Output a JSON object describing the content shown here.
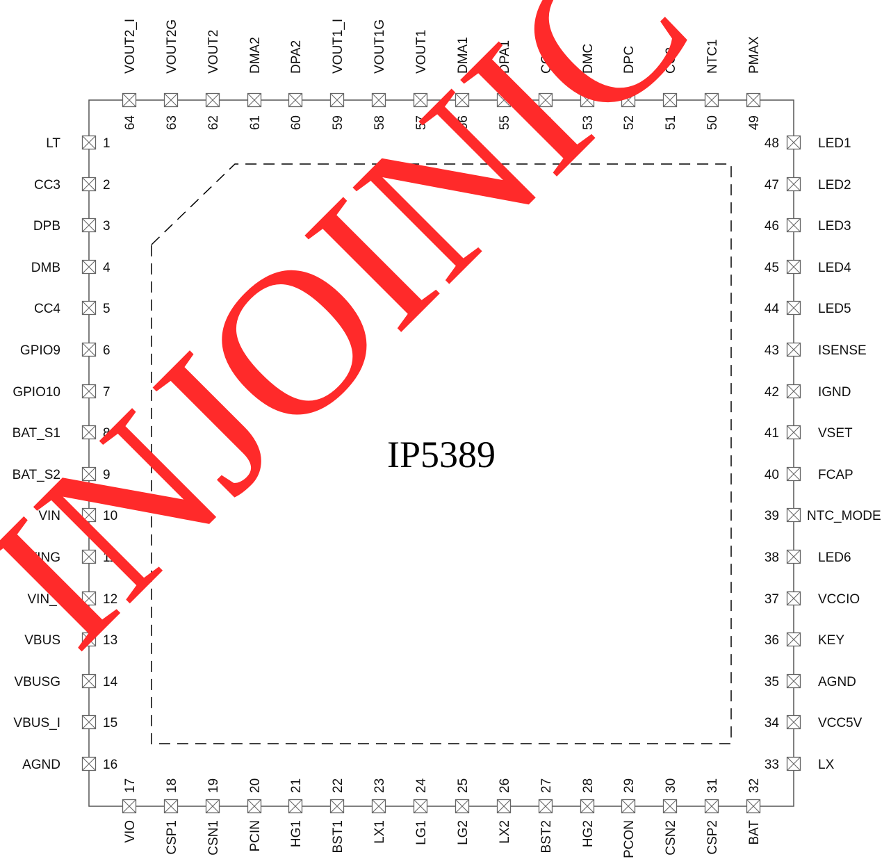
{
  "chip": {
    "name": "IP5389"
  },
  "watermark": {
    "text": "INJOINIC CORP.",
    "color": "#ff2a2a"
  },
  "colors": {
    "outline": "#555555",
    "pad": "#666666",
    "watermark": "#ff2a2a"
  },
  "pins": {
    "left": [
      {
        "num": "1",
        "name": "LT"
      },
      {
        "num": "2",
        "name": "CC3"
      },
      {
        "num": "3",
        "name": "DPB"
      },
      {
        "num": "4",
        "name": "DMB"
      },
      {
        "num": "5",
        "name": "CC4"
      },
      {
        "num": "6",
        "name": "GPIO9"
      },
      {
        "num": "7",
        "name": "GPIO10"
      },
      {
        "num": "8",
        "name": "BAT_S1"
      },
      {
        "num": "9",
        "name": "BAT_S2"
      },
      {
        "num": "10",
        "name": "VIN"
      },
      {
        "num": "11",
        "name": "VING"
      },
      {
        "num": "12",
        "name": "VIN_I"
      },
      {
        "num": "13",
        "name": "VBUS"
      },
      {
        "num": "14",
        "name": "VBUSG"
      },
      {
        "num": "15",
        "name": "VBUS_I"
      },
      {
        "num": "16",
        "name": "AGND"
      }
    ],
    "bottom": [
      {
        "num": "17",
        "name": "VIO"
      },
      {
        "num": "18",
        "name": "CSP1"
      },
      {
        "num": "19",
        "name": "CSN1"
      },
      {
        "num": "20",
        "name": "PCIN"
      },
      {
        "num": "21",
        "name": "HG1"
      },
      {
        "num": "22",
        "name": "BST1"
      },
      {
        "num": "23",
        "name": "LX1"
      },
      {
        "num": "24",
        "name": "LG1"
      },
      {
        "num": "25",
        "name": "LG2"
      },
      {
        "num": "26",
        "name": "LX2"
      },
      {
        "num": "27",
        "name": "BST2"
      },
      {
        "num": "28",
        "name": "HG2"
      },
      {
        "num": "29",
        "name": "PCON"
      },
      {
        "num": "30",
        "name": "CSN2"
      },
      {
        "num": "31",
        "name": "CSP2"
      },
      {
        "num": "32",
        "name": "BAT"
      }
    ],
    "right": [
      {
        "num": "48",
        "name": "LED1"
      },
      {
        "num": "47",
        "name": "LED2"
      },
      {
        "num": "46",
        "name": "LED3"
      },
      {
        "num": "45",
        "name": "LED4"
      },
      {
        "num": "44",
        "name": "LED5"
      },
      {
        "num": "43",
        "name": "ISENSE"
      },
      {
        "num": "42",
        "name": "IGND"
      },
      {
        "num": "41",
        "name": "VSET"
      },
      {
        "num": "40",
        "name": "FCAP"
      },
      {
        "num": "39",
        "name": "NTC_MODE"
      },
      {
        "num": "38",
        "name": "LED6"
      },
      {
        "num": "37",
        "name": "VCCIO"
      },
      {
        "num": "36",
        "name": "KEY"
      },
      {
        "num": "35",
        "name": "AGND"
      },
      {
        "num": "34",
        "name": "VCC5V"
      },
      {
        "num": "33",
        "name": "LX"
      }
    ],
    "top": [
      {
        "num": "64",
        "name": "VOUT2_I"
      },
      {
        "num": "63",
        "name": "VOUT2G"
      },
      {
        "num": "62",
        "name": "VOUT2"
      },
      {
        "num": "61",
        "name": "DMA2"
      },
      {
        "num": "60",
        "name": "DPA2"
      },
      {
        "num": "59",
        "name": "VOUT1_I"
      },
      {
        "num": "58",
        "name": "VOUT1G"
      },
      {
        "num": "57",
        "name": "VOUT1"
      },
      {
        "num": "56",
        "name": "DMA1"
      },
      {
        "num": "55",
        "name": "DPA1"
      },
      {
        "num": "54",
        "name": "CC1"
      },
      {
        "num": "53",
        "name": "DMC"
      },
      {
        "num": "52",
        "name": "DPC"
      },
      {
        "num": "51",
        "name": "CC2"
      },
      {
        "num": "50",
        "name": "NTC1"
      },
      {
        "num": "49",
        "name": "PMAX"
      }
    ]
  }
}
